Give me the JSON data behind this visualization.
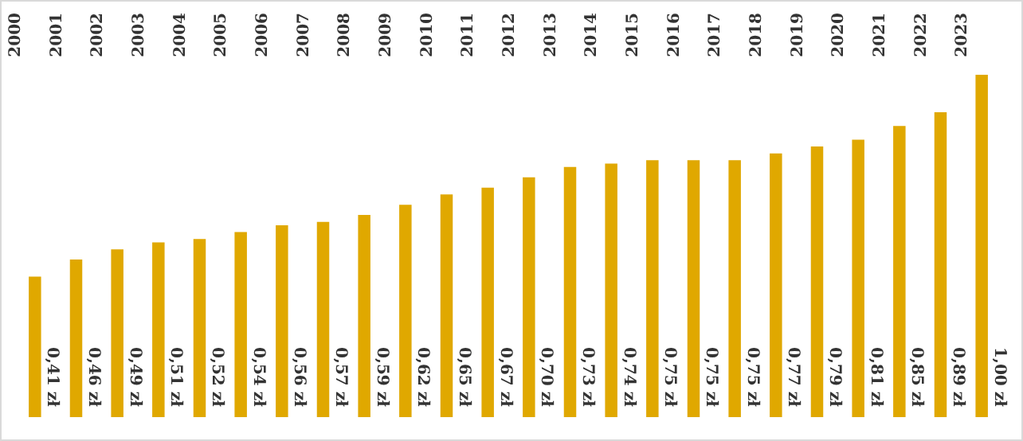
{
  "chart_data": {
    "type": "bar",
    "categories": [
      "2000",
      "2001",
      "2002",
      "2003",
      "2004",
      "2005",
      "2006",
      "2007",
      "2008",
      "2009",
      "2010",
      "2011",
      "2012",
      "2013",
      "2014",
      "2015",
      "2016",
      "2017",
      "2018",
      "2019",
      "2020",
      "2021",
      "2022",
      "2023"
    ],
    "values": [
      0.41,
      0.46,
      0.49,
      0.51,
      0.52,
      0.54,
      0.56,
      0.57,
      0.59,
      0.62,
      0.65,
      0.67,
      0.7,
      0.73,
      0.74,
      0.75,
      0.75,
      0.75,
      0.77,
      0.79,
      0.81,
      0.85,
      0.89,
      1.0
    ],
    "value_labels": [
      "0,41 zł",
      "0,46 zł",
      "0,49 zł",
      "0,51 zł",
      "0,52 zł",
      "0,54 zł",
      "0,56 zł",
      "0,57 zł",
      "0,59 zł",
      "0,62 zł",
      "0,65 zł",
      "0,67 zł",
      "0,70 zł",
      "0,73 zł",
      "0,74 zł",
      "0,75 zł",
      "0,75 zł",
      "0,75 zł",
      "0,77 zł",
      "0,79 zł",
      "0,81 zł",
      "0,85 zł",
      "0,89 zł",
      "1,00 zł"
    ],
    "color": "#e0a800",
    "grid": false,
    "legend": false,
    "tick_labels": "x"
  }
}
